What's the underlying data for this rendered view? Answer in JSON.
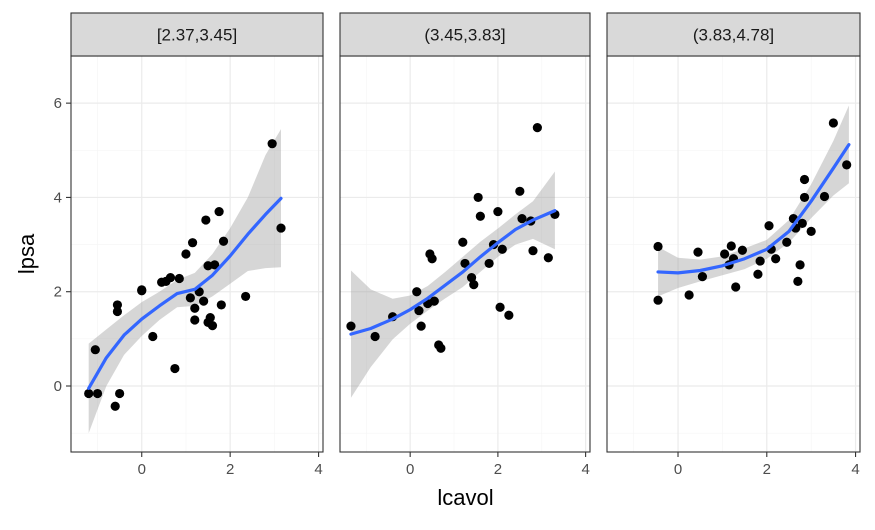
{
  "chart_data": {
    "type": "scatter",
    "xlabel": "lcavol",
    "ylabel": "lpsa",
    "xlim": [
      -1.6,
      4.1
    ],
    "ylim": [
      -1.4,
      7.0
    ],
    "x_ticks": [
      0,
      2,
      4
    ],
    "y_ticks": [
      0,
      2,
      4,
      6
    ],
    "grid": true,
    "colors": {
      "points": "#000000",
      "smooth_line": "#3366FF",
      "ribbon": "#999999",
      "strip_fill": "#D9D9D9",
      "grid_major": "#EBEBEB",
      "grid_minor": "#F5F5F5"
    },
    "panels": [
      {
        "strip_label": "[2.37,3.45]",
        "points": [
          [
            -1.2,
            -0.16
          ],
          [
            -1.05,
            0.77
          ],
          [
            -1.0,
            -0.16
          ],
          [
            -0.55,
            1.72
          ],
          [
            -0.55,
            1.58
          ],
          [
            -0.6,
            -0.43
          ],
          [
            -0.5,
            -0.16
          ],
          [
            0.0,
            2.04
          ],
          [
            0.0,
            2.02
          ],
          [
            0.25,
            1.05
          ],
          [
            0.45,
            2.2
          ],
          [
            0.55,
            2.22
          ],
          [
            0.65,
            2.3
          ],
          [
            0.75,
            0.37
          ],
          [
            0.85,
            2.28
          ],
          [
            1.0,
            2.8
          ],
          [
            1.1,
            1.87
          ],
          [
            1.15,
            3.04
          ],
          [
            1.2,
            1.65
          ],
          [
            1.2,
            1.4
          ],
          [
            1.3,
            2.0
          ],
          [
            1.4,
            1.8
          ],
          [
            1.45,
            3.52
          ],
          [
            1.5,
            2.55
          ],
          [
            1.5,
            1.35
          ],
          [
            1.55,
            1.45
          ],
          [
            1.6,
            1.28
          ],
          [
            1.65,
            2.57
          ],
          [
            1.75,
            3.7
          ],
          [
            1.8,
            1.72
          ],
          [
            1.85,
            3.07
          ],
          [
            2.35,
            1.9
          ],
          [
            2.95,
            5.14
          ],
          [
            3.15,
            3.35
          ]
        ],
        "smooth": [
          [
            -1.2,
            -0.05
          ],
          [
            -0.8,
            0.6
          ],
          [
            -0.4,
            1.08
          ],
          [
            0.0,
            1.42
          ],
          [
            0.4,
            1.7
          ],
          [
            0.8,
            1.96
          ],
          [
            1.2,
            2.05
          ],
          [
            1.6,
            2.35
          ],
          [
            2.0,
            2.76
          ],
          [
            2.4,
            3.22
          ],
          [
            2.8,
            3.64
          ],
          [
            3.15,
            3.98
          ]
        ],
        "band_upper": [
          [
            -1.2,
            0.9
          ],
          [
            -0.8,
            1.2
          ],
          [
            -0.4,
            1.5
          ],
          [
            0.0,
            1.78
          ],
          [
            0.4,
            2.0
          ],
          [
            0.8,
            2.25
          ],
          [
            1.2,
            2.4
          ],
          [
            1.6,
            2.8
          ],
          [
            2.0,
            3.35
          ],
          [
            2.4,
            4.0
          ],
          [
            2.8,
            4.9
          ],
          [
            3.15,
            5.45
          ]
        ],
        "band_lower": [
          [
            -1.2,
            -1.0
          ],
          [
            -0.8,
            0.0
          ],
          [
            -0.4,
            0.66
          ],
          [
            0.0,
            1.06
          ],
          [
            0.4,
            1.4
          ],
          [
            0.8,
            1.67
          ],
          [
            1.2,
            1.7
          ],
          [
            1.6,
            1.9
          ],
          [
            2.0,
            2.17
          ],
          [
            2.4,
            2.44
          ],
          [
            2.8,
            2.5
          ],
          [
            3.15,
            2.52
          ]
        ]
      },
      {
        "strip_label": "(3.45,3.83]",
        "points": [
          [
            -1.35,
            1.27
          ],
          [
            -0.8,
            1.05
          ],
          [
            -0.4,
            1.47
          ],
          [
            0.15,
            2.0
          ],
          [
            0.2,
            1.6
          ],
          [
            0.25,
            1.27
          ],
          [
            0.4,
            1.75
          ],
          [
            0.45,
            2.8
          ],
          [
            0.5,
            2.7
          ],
          [
            0.55,
            1.8
          ],
          [
            0.65,
            0.87
          ],
          [
            0.7,
            0.8
          ],
          [
            1.2,
            3.05
          ],
          [
            1.25,
            2.6
          ],
          [
            1.4,
            2.3
          ],
          [
            1.45,
            2.15
          ],
          [
            1.55,
            4.0
          ],
          [
            1.6,
            3.6
          ],
          [
            1.8,
            2.6
          ],
          [
            1.9,
            3.0
          ],
          [
            2.0,
            3.7
          ],
          [
            2.05,
            1.67
          ],
          [
            2.1,
            2.9
          ],
          [
            2.25,
            1.5
          ],
          [
            2.5,
            4.13
          ],
          [
            2.55,
            3.55
          ],
          [
            2.75,
            3.5
          ],
          [
            2.8,
            2.87
          ],
          [
            2.9,
            5.48
          ],
          [
            3.15,
            2.72
          ],
          [
            3.3,
            3.64
          ]
        ],
        "smooth": [
          [
            -1.35,
            1.1
          ],
          [
            -0.9,
            1.22
          ],
          [
            -0.4,
            1.42
          ],
          [
            0.0,
            1.62
          ],
          [
            0.4,
            1.86
          ],
          [
            0.8,
            2.14
          ],
          [
            1.2,
            2.42
          ],
          [
            1.6,
            2.74
          ],
          [
            2.0,
            3.04
          ],
          [
            2.4,
            3.32
          ],
          [
            2.8,
            3.52
          ],
          [
            3.3,
            3.72
          ]
        ],
        "band_upper": [
          [
            -1.35,
            2.45
          ],
          [
            -0.9,
            2.05
          ],
          [
            -0.4,
            1.85
          ],
          [
            0.0,
            1.92
          ],
          [
            0.4,
            2.12
          ],
          [
            0.8,
            2.42
          ],
          [
            1.2,
            2.74
          ],
          [
            1.6,
            3.06
          ],
          [
            2.0,
            3.34
          ],
          [
            2.4,
            3.64
          ],
          [
            2.8,
            3.92
          ],
          [
            3.3,
            4.55
          ]
        ],
        "band_lower": [
          [
            -1.35,
            -0.25
          ],
          [
            -0.9,
            0.4
          ],
          [
            -0.4,
            0.99
          ],
          [
            0.0,
            1.32
          ],
          [
            0.4,
            1.6
          ],
          [
            0.8,
            1.86
          ],
          [
            1.2,
            2.1
          ],
          [
            1.6,
            2.42
          ],
          [
            2.0,
            2.74
          ],
          [
            2.4,
            3.0
          ],
          [
            2.8,
            3.12
          ],
          [
            3.3,
            2.9
          ]
        ]
      },
      {
        "strip_label": "(3.83,4.78]",
        "points": [
          [
            -0.45,
            2.96
          ],
          [
            -0.45,
            1.82
          ],
          [
            0.25,
            1.93
          ],
          [
            0.45,
            2.84
          ],
          [
            0.55,
            2.32
          ],
          [
            1.05,
            2.8
          ],
          [
            1.15,
            2.57
          ],
          [
            1.2,
            2.97
          ],
          [
            1.25,
            2.7
          ],
          [
            1.3,
            2.1
          ],
          [
            1.45,
            2.88
          ],
          [
            1.8,
            2.37
          ],
          [
            1.85,
            2.65
          ],
          [
            2.05,
            3.4
          ],
          [
            2.1,
            2.9
          ],
          [
            2.2,
            2.7
          ],
          [
            2.45,
            3.05
          ],
          [
            2.6,
            3.55
          ],
          [
            2.65,
            3.35
          ],
          [
            2.7,
            2.22
          ],
          [
            2.75,
            2.57
          ],
          [
            2.8,
            3.45
          ],
          [
            2.85,
            4.0
          ],
          [
            2.85,
            4.38
          ],
          [
            3.0,
            3.28
          ],
          [
            3.3,
            4.02
          ],
          [
            3.5,
            5.58
          ],
          [
            3.8,
            4.69
          ]
        ],
        "smooth": [
          [
            -0.45,
            2.42
          ],
          [
            0.0,
            2.4
          ],
          [
            0.5,
            2.45
          ],
          [
            1.0,
            2.55
          ],
          [
            1.5,
            2.7
          ],
          [
            2.0,
            2.9
          ],
          [
            2.5,
            3.28
          ],
          [
            3.0,
            3.92
          ],
          [
            3.5,
            4.62
          ],
          [
            3.85,
            5.12
          ]
        ],
        "band_upper": [
          [
            -0.45,
            2.95
          ],
          [
            0.0,
            2.72
          ],
          [
            0.5,
            2.68
          ],
          [
            1.0,
            2.75
          ],
          [
            1.5,
            2.92
          ],
          [
            2.0,
            3.1
          ],
          [
            2.5,
            3.52
          ],
          [
            3.0,
            4.28
          ],
          [
            3.5,
            5.2
          ],
          [
            3.85,
            5.95
          ]
        ],
        "band_lower": [
          [
            -0.45,
            1.9
          ],
          [
            0.0,
            2.08
          ],
          [
            0.5,
            2.22
          ],
          [
            1.0,
            2.35
          ],
          [
            1.5,
            2.48
          ],
          [
            2.0,
            2.7
          ],
          [
            2.5,
            3.04
          ],
          [
            3.0,
            3.56
          ],
          [
            3.5,
            4.04
          ],
          [
            3.85,
            4.3
          ]
        ]
      }
    ]
  }
}
